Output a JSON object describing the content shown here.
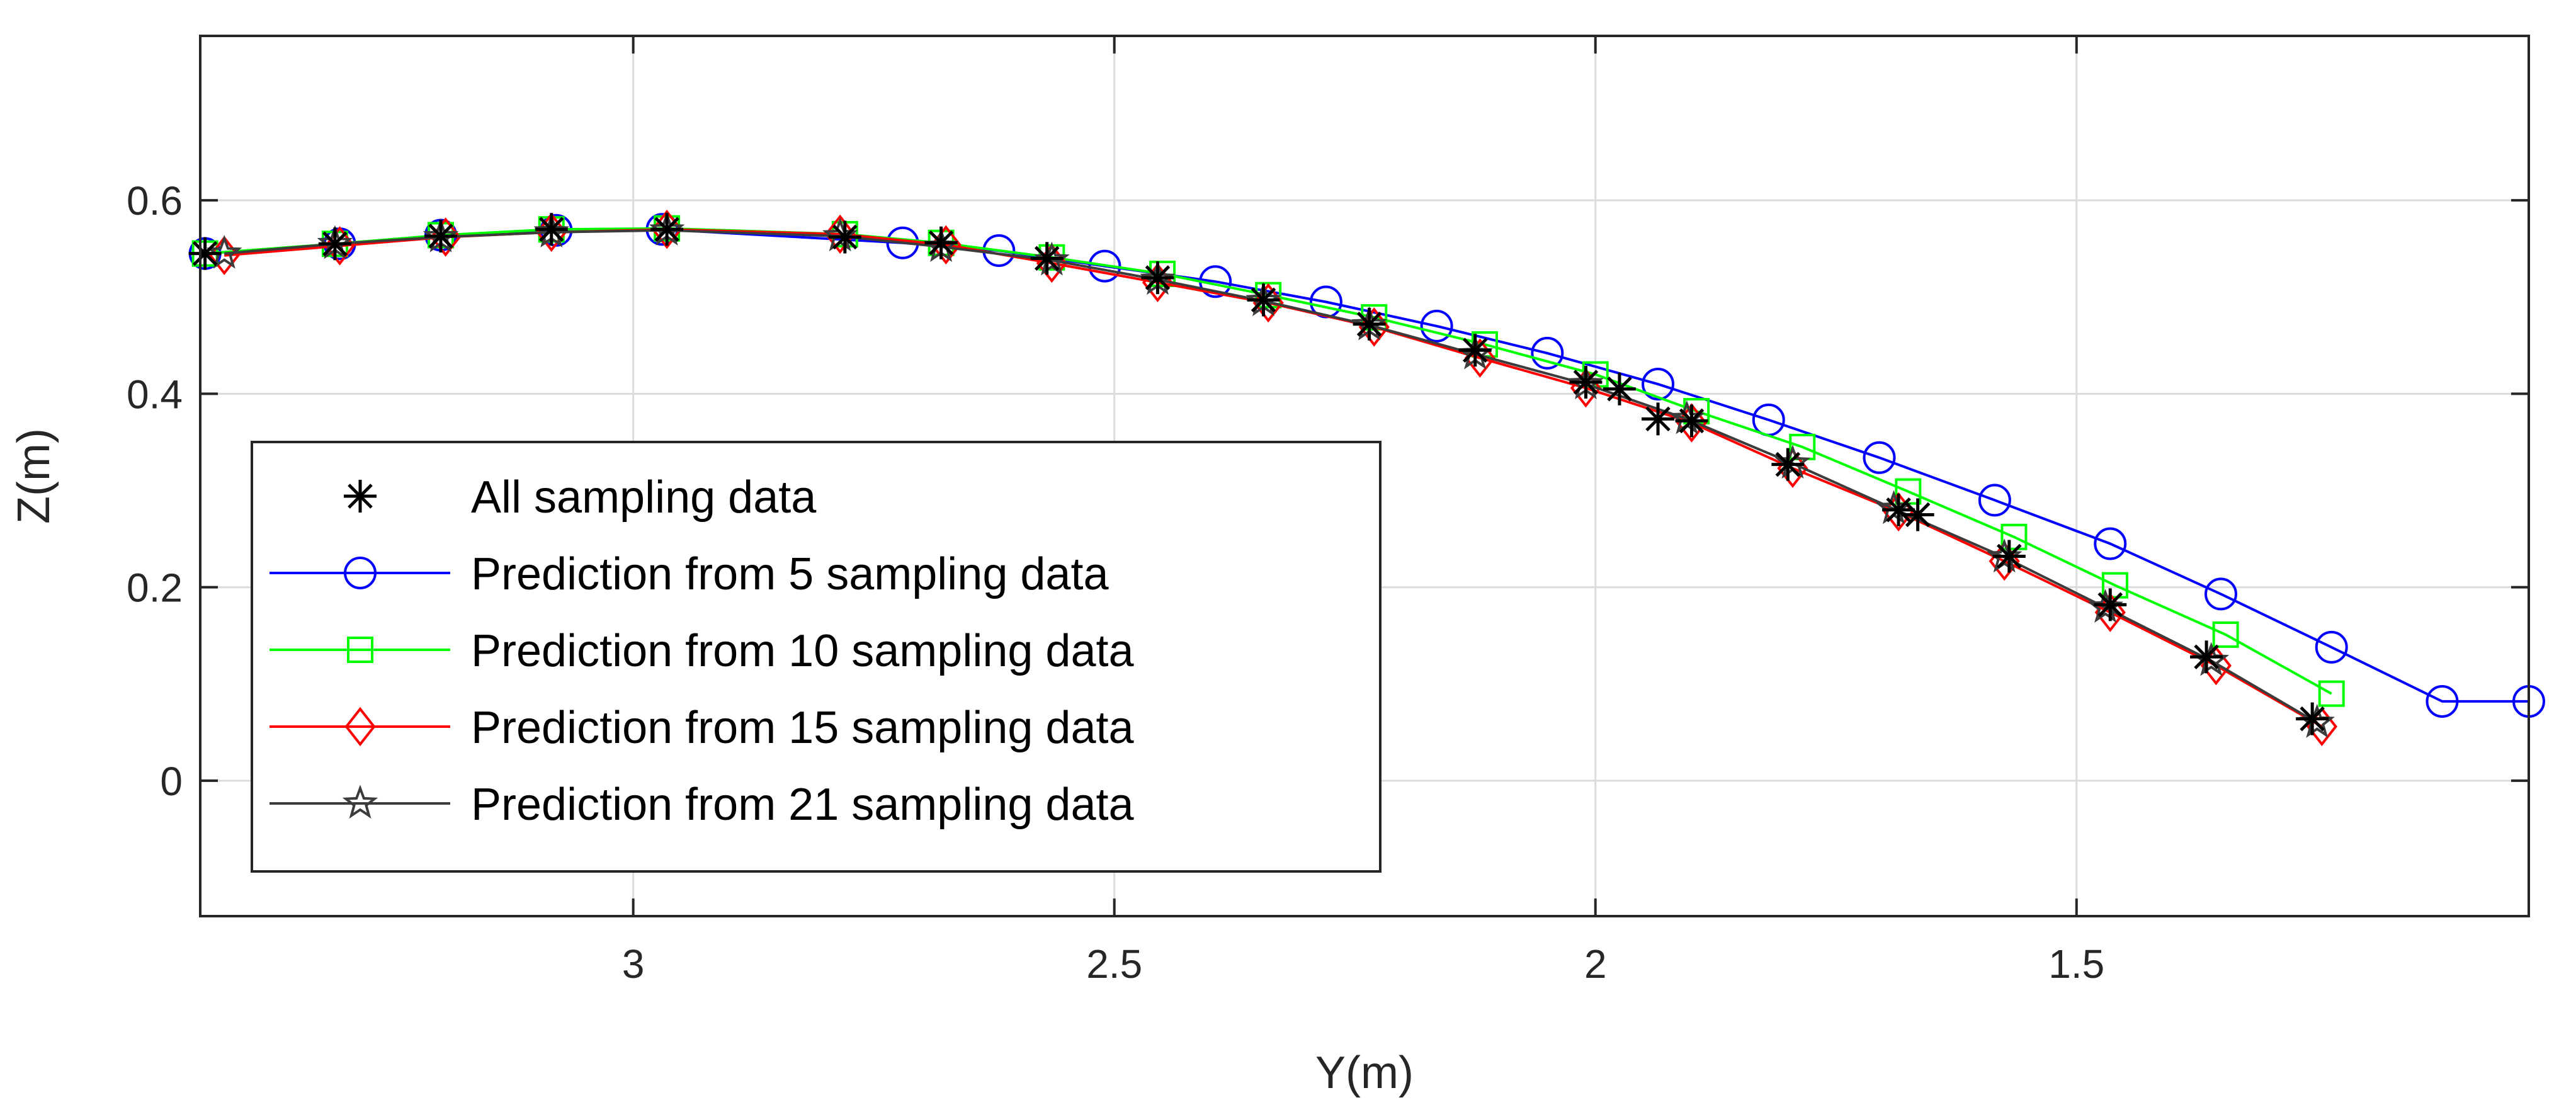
{
  "chart_data": {
    "type": "line",
    "title": "",
    "xlabel": "Y(m)",
    "ylabel": "Z(m)",
    "xlim": [
      3.45,
      1.03
    ],
    "ylim": [
      -0.14,
      0.77
    ],
    "x_direction": "reversed",
    "xticks": [
      3,
      2.5,
      2,
      1.5
    ],
    "xtick_labels": [
      "3",
      "2.5",
      "2",
      "1.5"
    ],
    "yticks": [
      0,
      0.2,
      0.4,
      0.6
    ],
    "ytick_labels": [
      "0",
      "0.2",
      "0.4",
      "0.6"
    ],
    "grid": true,
    "legend_position": "bottom-left",
    "series": [
      {
        "name": "All sampling data",
        "color": "#000000",
        "marker": "asterisk",
        "line": false,
        "x": [
          3.445,
          3.31,
          3.2,
          3.085,
          2.965,
          2.78,
          2.68,
          2.57,
          2.455,
          2.345,
          2.235,
          2.125,
          2.01,
          1.975,
          1.935,
          1.9,
          1.8,
          1.685,
          1.665,
          1.57,
          1.465,
          1.365,
          1.255
        ],
        "y": [
          0.545,
          0.555,
          0.563,
          0.57,
          0.57,
          0.562,
          0.556,
          0.54,
          0.52,
          0.497,
          0.472,
          0.445,
          0.412,
          0.405,
          0.374,
          0.372,
          0.327,
          0.28,
          0.275,
          0.232,
          0.182,
          0.128,
          0.064
        ]
      },
      {
        "name": "Prediction from 5 sampling data",
        "color": "#0000ff",
        "marker": "circle",
        "line": true,
        "x": [
          3.445,
          3.305,
          3.2,
          3.08,
          2.97,
          2.72,
          2.62,
          2.51,
          2.395,
          2.28,
          2.165,
          2.05,
          1.935,
          1.82,
          1.705,
          1.585,
          1.465,
          1.35,
          1.235,
          1.12,
          1.03
        ],
        "y": [
          0.545,
          0.555,
          0.564,
          0.569,
          0.57,
          0.556,
          0.548,
          0.532,
          0.516,
          0.495,
          0.47,
          0.442,
          0.41,
          0.373,
          0.334,
          0.29,
          0.245,
          0.193,
          0.138,
          0.082,
          0.082
        ]
      },
      {
        "name": "Prediction from 10 sampling data",
        "color": "#00ff00",
        "marker": "square",
        "line": true,
        "x": [
          3.445,
          3.31,
          3.2,
          3.085,
          2.965,
          2.78,
          2.68,
          2.565,
          2.45,
          2.34,
          2.23,
          2.115,
          2.0,
          1.895,
          1.785,
          1.675,
          1.565,
          1.46,
          1.345,
          1.235
        ],
        "y": [
          0.545,
          0.555,
          0.564,
          0.57,
          0.571,
          0.565,
          0.556,
          0.541,
          0.524,
          0.502,
          0.479,
          0.451,
          0.42,
          0.382,
          0.345,
          0.299,
          0.252,
          0.202,
          0.151,
          0.09
        ]
      },
      {
        "name": "Prediction from 15 sampling data",
        "color": "#ff0000",
        "marker": "diamond",
        "line": true,
        "x": [
          3.425,
          3.305,
          3.195,
          3.085,
          2.965,
          2.785,
          2.675,
          2.565,
          2.455,
          2.34,
          2.23,
          2.12,
          2.01,
          1.9,
          1.795,
          1.685,
          1.575,
          1.465,
          1.355,
          1.245
        ],
        "y": [
          0.543,
          0.553,
          0.562,
          0.567,
          0.57,
          0.565,
          0.554,
          0.535,
          0.515,
          0.494,
          0.469,
          0.437,
          0.406,
          0.37,
          0.323,
          0.278,
          0.227,
          0.174,
          0.119,
          0.056
        ]
      },
      {
        "name": "Prediction from 21 sampling data",
        "color": "#3c3c3c",
        "marker": "star",
        "line": true,
        "x": [
          3.425,
          3.31,
          3.2,
          3.085,
          2.965,
          2.785,
          2.68,
          2.565,
          2.455,
          2.345,
          2.235,
          2.125,
          2.01,
          1.905,
          1.795,
          1.69,
          1.575,
          1.47,
          1.36,
          1.25
        ],
        "y": [
          0.545,
          0.555,
          0.562,
          0.567,
          0.569,
          0.563,
          0.552,
          0.538,
          0.518,
          0.496,
          0.471,
          0.441,
          0.41,
          0.374,
          0.328,
          0.281,
          0.231,
          0.179,
          0.124,
          0.06
        ]
      }
    ]
  }
}
